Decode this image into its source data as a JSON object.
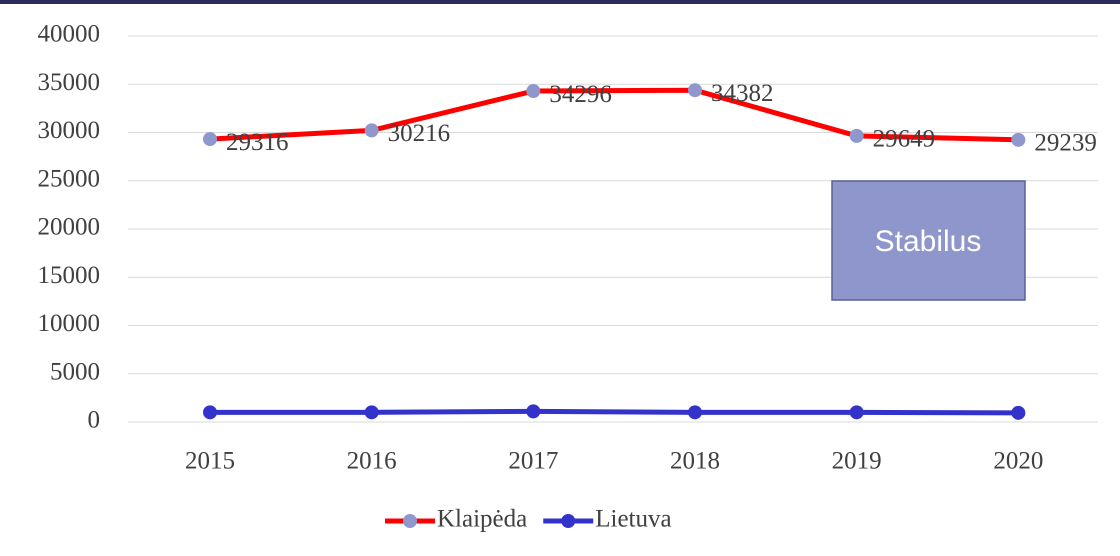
{
  "chart_data": {
    "type": "line",
    "categories": [
      "2015",
      "2016",
      "2017",
      "2018",
      "2019",
      "2020"
    ],
    "series": [
      {
        "name": "Klaipėda",
        "color": "#ff0000",
        "marker_color": "#8f98cc",
        "values": [
          29316,
          30216,
          34296,
          34382,
          29649,
          29239
        ],
        "data_labels": true
      },
      {
        "name": "Lietuva",
        "color": "#3333cc",
        "marker_color": "#3333cc",
        "values": [
          1000,
          1000,
          1100,
          1000,
          1000,
          950
        ],
        "data_labels": false
      }
    ],
    "ylim": [
      0,
      40000
    ],
    "yticks": [
      0,
      5000,
      10000,
      15000,
      20000,
      25000,
      30000,
      35000,
      40000
    ],
    "grid": true,
    "legend": "bottom",
    "annotation": {
      "text": "Stabilus",
      "color": "#8f96cc"
    }
  }
}
